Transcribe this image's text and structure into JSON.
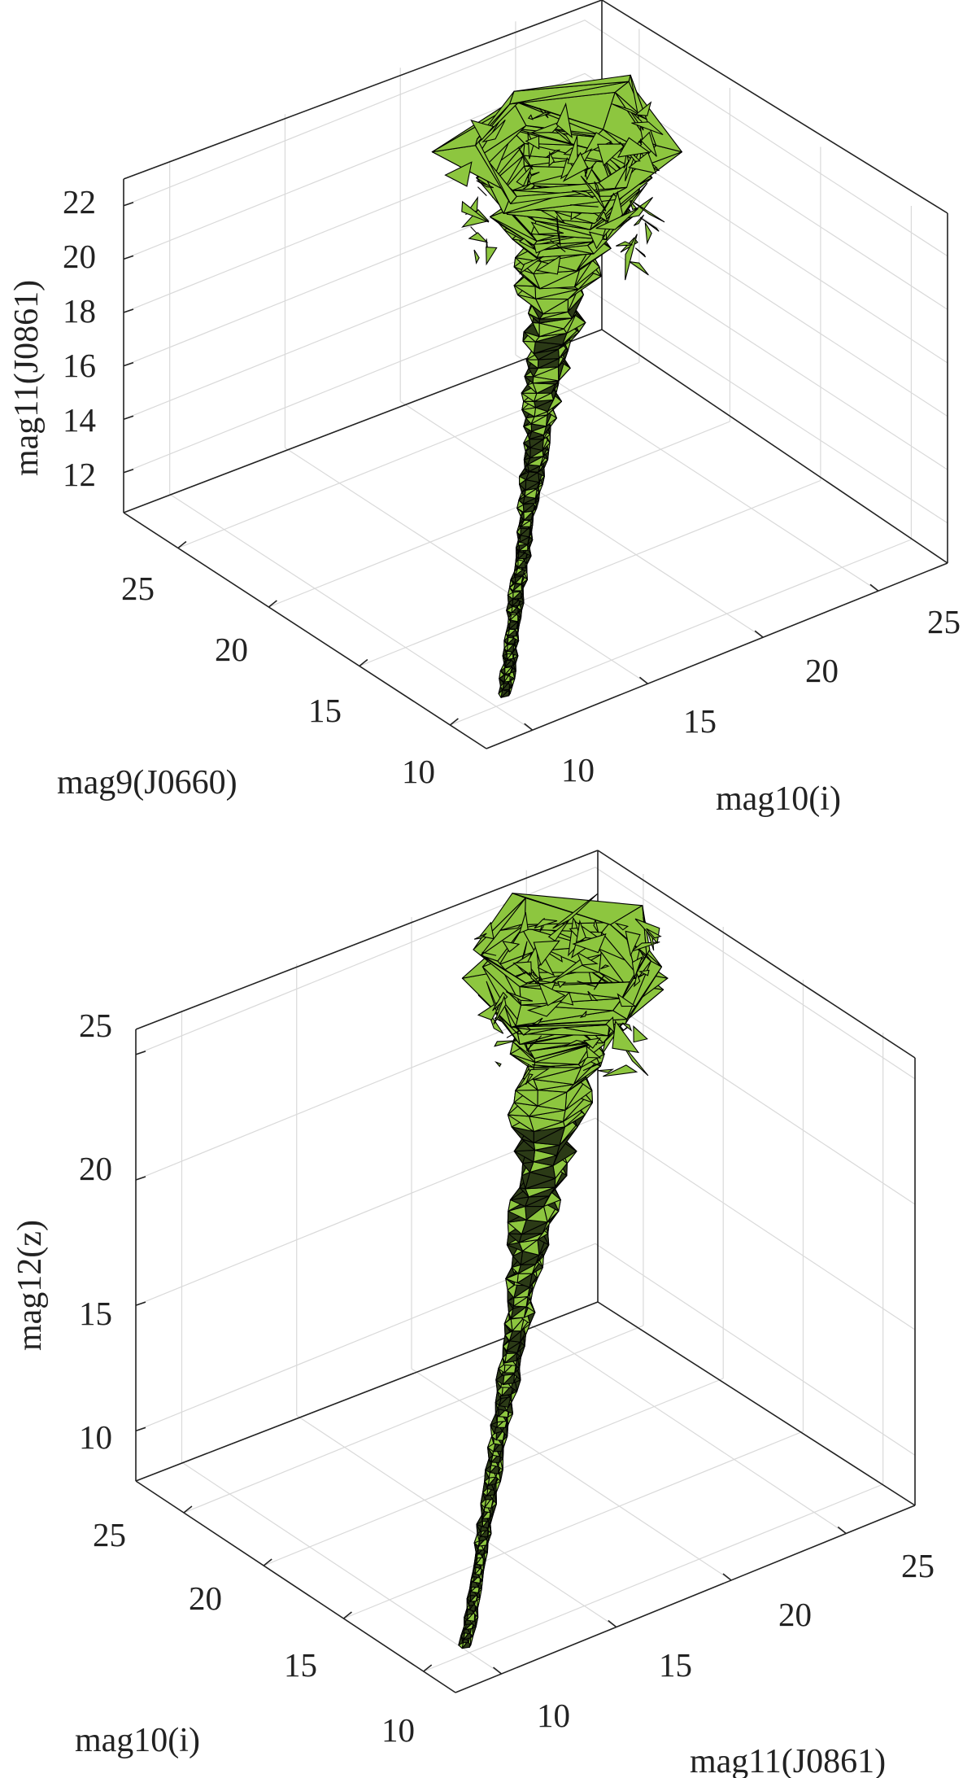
{
  "chart_data": [
    {
      "type": "3d-alpha-shape",
      "xlabel": "mag9(J0660)",
      "ylabel": "mag10(i)",
      "zlabel": "mag11(J0861)",
      "xticks": [
        "10",
        "15",
        "20",
        "25"
      ],
      "yticks": [
        "10",
        "15",
        "20",
        "25"
      ],
      "zticks": [
        "12",
        "14",
        "16",
        "18",
        "20",
        "22"
      ],
      "xlim": [
        8,
        28
      ],
      "ylim": [
        8,
        28
      ],
      "zlim": [
        10.5,
        23
      ],
      "grid": true,
      "face_color": "#8dc63f",
      "edge_color": "#000000",
      "spine": [
        {
          "x": 9.5,
          "y": 10.0,
          "z": 11.2
        },
        {
          "x": 12.0,
          "y": 12.5,
          "z": 13.2
        },
        {
          "x": 15.0,
          "y": 15.5,
          "z": 15.0
        },
        {
          "x": 18.0,
          "y": 18.5,
          "z": 17.0
        },
        {
          "x": 21.0,
          "y": 21.5,
          "z": 19.5
        },
        {
          "x": 23.0,
          "y": 23.0,
          "z": 21.5
        }
      ]
    },
    {
      "type": "3d-alpha-shape",
      "xlabel": "mag10(i)",
      "ylabel": "mag11(J0861)",
      "zlabel": "mag12(z)",
      "xticks": [
        "10",
        "15",
        "20",
        "25"
      ],
      "yticks": [
        "10",
        "15",
        "20",
        "25"
      ],
      "zticks": [
        "10",
        "15",
        "20",
        "25"
      ],
      "xlim": [
        8,
        28
      ],
      "ylim": [
        8,
        28
      ],
      "zlim": [
        8,
        26
      ],
      "grid": true,
      "face_color": "#8dc63f",
      "edge_color": "#000000",
      "spine": [
        {
          "x": 9.5,
          "y": 9.5,
          "z": 8.7
        },
        {
          "x": 12.5,
          "y": 12.5,
          "z": 11.5
        },
        {
          "x": 16.0,
          "y": 16.0,
          "z": 15.0
        },
        {
          "x": 19.5,
          "y": 19.5,
          "z": 18.5
        },
        {
          "x": 23.0,
          "y": 23.0,
          "z": 22.5
        },
        {
          "x": 24.5,
          "y": 24.5,
          "z": 24.5
        }
      ]
    }
  ]
}
